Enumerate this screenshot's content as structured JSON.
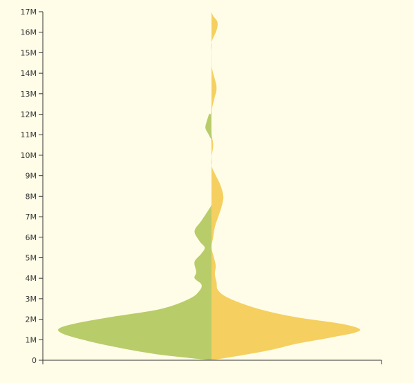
{
  "chart_data": {
    "type": "violin",
    "title": "",
    "xlabel": "",
    "ylabel": "",
    "ylim": [
      0,
      17000000
    ],
    "yticks": [
      {
        "value": 0,
        "label": "0"
      },
      {
        "value": 1000000,
        "label": "1M"
      },
      {
        "value": 2000000,
        "label": "2M"
      },
      {
        "value": 3000000,
        "label": "3M"
      },
      {
        "value": 4000000,
        "label": "4M"
      },
      {
        "value": 5000000,
        "label": "5M"
      },
      {
        "value": 6000000,
        "label": "6M"
      },
      {
        "value": 7000000,
        "label": "7M"
      },
      {
        "value": 8000000,
        "label": "8M"
      },
      {
        "value": 9000000,
        "label": "9M"
      },
      {
        "value": 10000000,
        "label": "10M"
      },
      {
        "value": 11000000,
        "label": "11M"
      },
      {
        "value": 12000000,
        "label": "12M"
      },
      {
        "value": 13000000,
        "label": "13M"
      },
      {
        "value": 14000000,
        "label": "14M"
      },
      {
        "value": 15000000,
        "label": "15M"
      },
      {
        "value": 16000000,
        "label": "16M"
      },
      {
        "value": 17000000,
        "label": "17M"
      }
    ],
    "grid": false,
    "legend": "none",
    "density_scale_max": 1.0,
    "series": [
      {
        "side": "left",
        "color": "#b8cc6a",
        "density": [
          [
            0,
            0.0
          ],
          [
            300000,
            0.33
          ],
          [
            700000,
            0.6
          ],
          [
            1000000,
            0.76
          ],
          [
            1300000,
            0.88
          ],
          [
            1550000,
            0.9
          ],
          [
            1800000,
            0.8
          ],
          [
            2100000,
            0.6
          ],
          [
            2500000,
            0.3
          ],
          [
            3000000,
            0.13
          ],
          [
            3400000,
            0.07
          ],
          [
            3700000,
            0.06
          ],
          [
            4000000,
            0.1
          ],
          [
            4300000,
            0.09
          ],
          [
            4800000,
            0.1
          ],
          [
            5200000,
            0.06
          ],
          [
            5500000,
            0.04
          ],
          [
            5800000,
            0.07
          ],
          [
            6300000,
            0.1
          ],
          [
            6800000,
            0.06
          ],
          [
            7300000,
            0.02
          ],
          [
            7600000,
            0.0
          ],
          [
            8000000,
            0.0
          ],
          [
            10500000,
            0.0
          ],
          [
            10900000,
            0.01
          ],
          [
            11300000,
            0.035
          ],
          [
            11600000,
            0.03
          ],
          [
            12000000,
            0.015
          ],
          [
            12500000,
            0.0
          ],
          [
            17000000,
            0.0
          ]
        ]
      },
      {
        "side": "right",
        "color": "#f5d060",
        "density": [
          [
            0,
            0.0
          ],
          [
            200000,
            0.15
          ],
          [
            500000,
            0.35
          ],
          [
            800000,
            0.5
          ],
          [
            1100000,
            0.7
          ],
          [
            1350000,
            0.85
          ],
          [
            1550000,
            0.87
          ],
          [
            1800000,
            0.75
          ],
          [
            2100000,
            0.5
          ],
          [
            2500000,
            0.28
          ],
          [
            3000000,
            0.11
          ],
          [
            3400000,
            0.04
          ],
          [
            3800000,
            0.03
          ],
          [
            4200000,
            0.02
          ],
          [
            4600000,
            0.025
          ],
          [
            5000000,
            0.015
          ],
          [
            5500000,
            0.0
          ],
          [
            6000000,
            0.01
          ],
          [
            6500000,
            0.02
          ],
          [
            7000000,
            0.04
          ],
          [
            7500000,
            0.06
          ],
          [
            8000000,
            0.07
          ],
          [
            8600000,
            0.05
          ],
          [
            9100000,
            0.02
          ],
          [
            9500000,
            0.0
          ],
          [
            9900000,
            0.0
          ],
          [
            10500000,
            0.01
          ],
          [
            11100000,
            0.0
          ],
          [
            12100000,
            0.0
          ],
          [
            12700000,
            0.015
          ],
          [
            13300000,
            0.03
          ],
          [
            14000000,
            0.01
          ],
          [
            14400000,
            0.0
          ],
          [
            15000000,
            0.0
          ],
          [
            15500000,
            0.0
          ],
          [
            16100000,
            0.03
          ],
          [
            16500000,
            0.035
          ],
          [
            16800000,
            0.01
          ],
          [
            17000000,
            0.0
          ]
        ]
      }
    ]
  }
}
